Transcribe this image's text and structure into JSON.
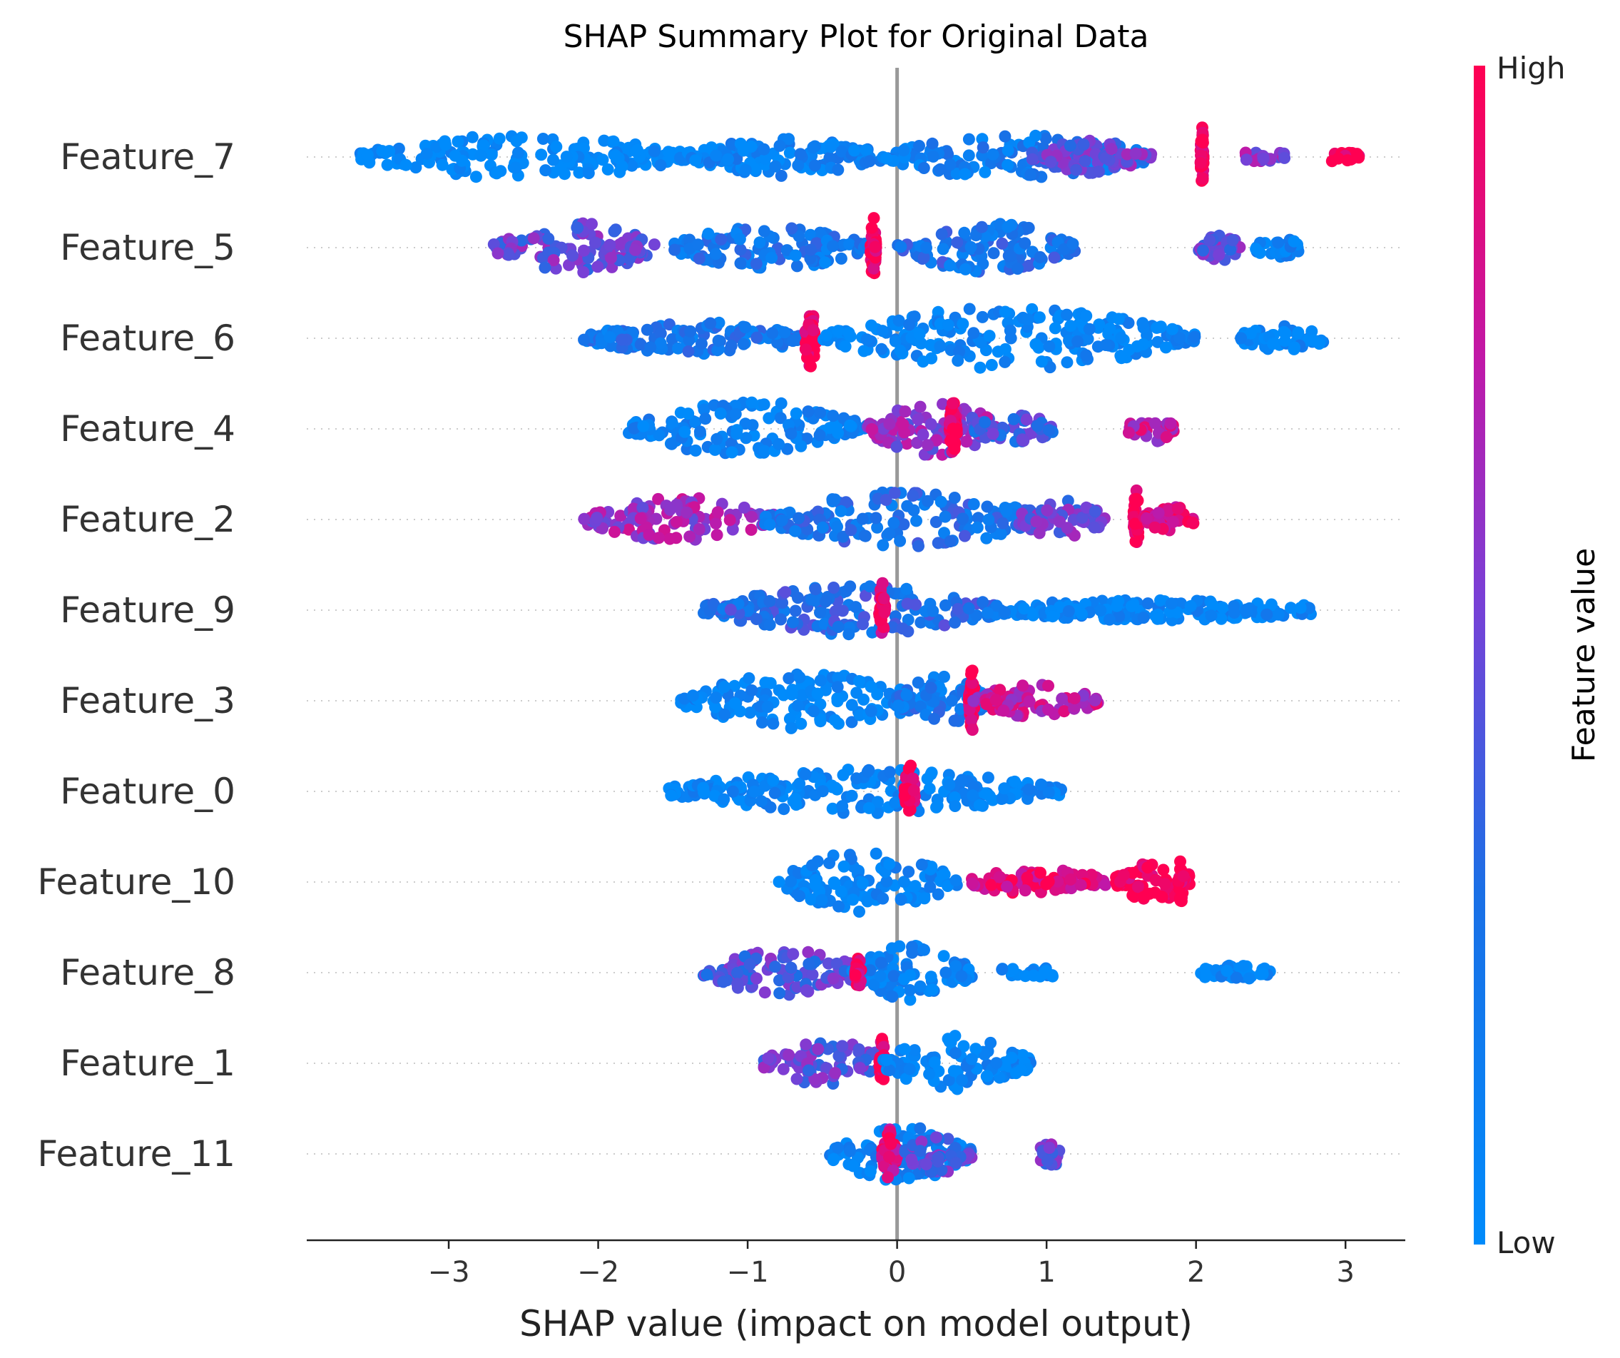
{
  "chart_data": {
    "type": "scatter",
    "title": "SHAP Summary Plot for Original Data",
    "xlabel": "SHAP value (impact on model output)",
    "ylabel": "",
    "xlim": [
      -3.95,
      3.4
    ],
    "xticks": [
      -3,
      -2,
      -1,
      0,
      1,
      2,
      3
    ],
    "xtick_labels": [
      "−3",
      "−2",
      "−1",
      "0",
      "1",
      "2",
      "3"
    ],
    "colorbar": {
      "label": "Feature value",
      "high": "High",
      "low": "Low",
      "color_low": "#008bfb",
      "color_high": "#ff0052"
    },
    "features": [
      {
        "name": "Feature_7",
        "groups": [
          [
            -3.6,
            -1.4,
            0.0,
            0.6
          ],
          [
            -1.4,
            -0.1,
            0.1,
            0.5
          ],
          [
            -0.1,
            1.7,
            0.15,
            0.6
          ],
          [
            0.9,
            1.7,
            0.5,
            0.4
          ],
          [
            2.03,
            2.05,
            1.0,
            0.9
          ],
          [
            2.3,
            2.6,
            0.6,
            0.0
          ],
          [
            2.9,
            3.1,
            1.0,
            0.0
          ]
        ]
      },
      {
        "name": "Feature_5",
        "groups": [
          [
            -2.7,
            -1.6,
            0.5,
            0.7
          ],
          [
            -1.5,
            -0.2,
            0.2,
            0.6
          ],
          [
            -0.18,
            -0.14,
            1.0,
            0.9
          ],
          [
            0.0,
            1.2,
            0.25,
            0.7
          ],
          [
            2.0,
            2.3,
            0.5,
            0.3
          ],
          [
            2.4,
            2.7,
            0.1,
            0.2
          ]
        ]
      },
      {
        "name": "Feature_6",
        "groups": [
          [
            -2.1,
            -0.6,
            0.2,
            0.4
          ],
          [
            -0.62,
            -0.54,
            1.0,
            0.8
          ],
          [
            -0.5,
            2.0,
            0.05,
            0.9
          ],
          [
            2.3,
            2.85,
            0.05,
            0.3
          ]
        ]
      },
      {
        "name": "Feature_4",
        "groups": [
          [
            -1.8,
            -0.2,
            0.1,
            0.8
          ],
          [
            -0.2,
            0.7,
            0.6,
            0.8
          ],
          [
            0.35,
            0.4,
            1.0,
            0.8
          ],
          [
            0.5,
            1.05,
            0.4,
            0.4
          ],
          [
            1.55,
            1.85,
            0.75,
            0.3
          ]
        ]
      },
      {
        "name": "Feature_2",
        "groups": [
          [
            -2.1,
            -0.8,
            0.65,
            0.6
          ],
          [
            -0.9,
            1.0,
            0.25,
            0.8
          ],
          [
            0.8,
            1.4,
            0.5,
            0.5
          ],
          [
            1.58,
            1.62,
            1.0,
            0.9
          ],
          [
            1.65,
            2.0,
            0.9,
            0.3
          ]
        ]
      },
      {
        "name": "Feature_9",
        "groups": [
          [
            -1.3,
            0.7,
            0.3,
            0.7
          ],
          [
            -0.12,
            -0.08,
            0.9,
            0.8
          ],
          [
            0.6,
            2.8,
            0.05,
            0.2
          ]
        ]
      },
      {
        "name": "Feature_3",
        "groups": [
          [
            -1.45,
            0.2,
            0.05,
            0.8
          ],
          [
            0.0,
            0.6,
            0.2,
            0.7
          ],
          [
            0.48,
            0.52,
            1.0,
            0.9
          ],
          [
            0.5,
            1.35,
            0.75,
            0.4
          ]
        ]
      },
      {
        "name": "Feature_0",
        "groups": [
          [
            -1.55,
            1.1,
            0.05,
            0.6
          ],
          [
            0.05,
            0.12,
            0.95,
            0.8
          ]
        ]
      },
      {
        "name": "Feature_10",
        "groups": [
          [
            -0.8,
            0.4,
            0.05,
            0.9
          ],
          [
            0.5,
            1.4,
            0.9,
            0.3
          ],
          [
            1.45,
            2.0,
            1.0,
            0.5
          ],
          [
            1.88,
            1.92,
            1.0,
            0.6
          ]
        ]
      },
      {
        "name": "Feature_8",
        "groups": [
          [
            -1.3,
            -0.2,
            0.45,
            0.6
          ],
          [
            -0.3,
            0.5,
            0.1,
            0.8
          ],
          [
            -0.28,
            -0.24,
            0.95,
            0.5
          ],
          [
            0.7,
            1.05,
            0.05,
            0.0
          ],
          [
            2.0,
            2.5,
            0.05,
            0.1
          ]
        ]
      },
      {
        "name": "Feature_1",
        "groups": [
          [
            -0.9,
            0.0,
            0.5,
            0.6
          ],
          [
            -0.12,
            -0.08,
            1.0,
            0.7
          ],
          [
            -0.1,
            0.9,
            0.05,
            0.8
          ]
        ]
      },
      {
        "name": "Feature_11",
        "groups": [
          [
            -0.45,
            0.5,
            0.1,
            0.8
          ],
          [
            -0.1,
            0.0,
            0.9,
            0.7
          ],
          [
            0.05,
            0.5,
            0.45,
            0.5
          ],
          [
            0.95,
            1.1,
            0.5,
            0.3
          ]
        ]
      }
    ]
  }
}
